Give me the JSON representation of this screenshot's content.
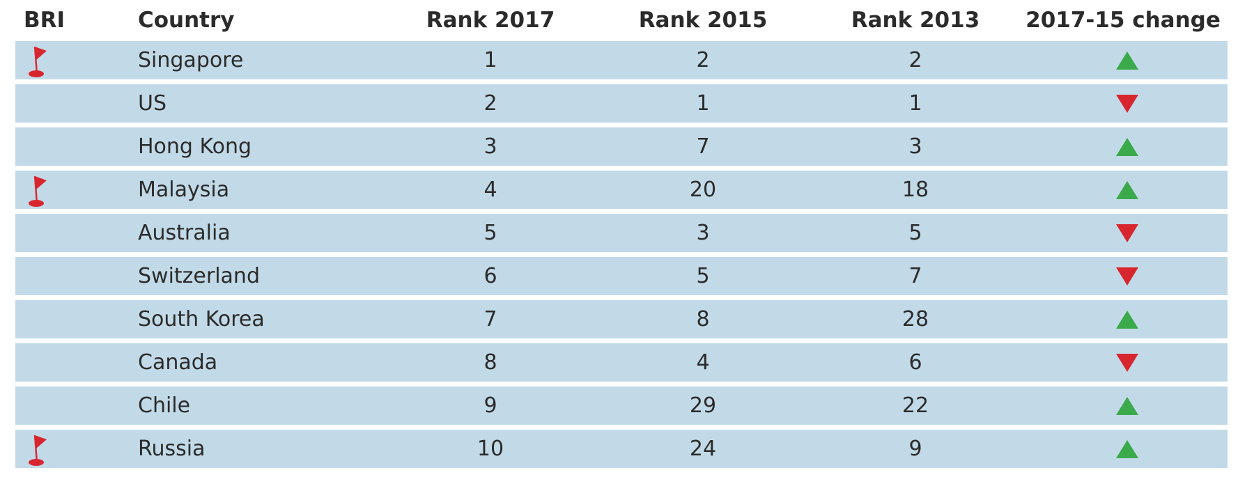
{
  "chart_data": {
    "type": "table",
    "columns": [
      "BRI",
      "Country",
      "Rank 2017",
      "Rank 2015",
      "Rank 2013",
      "2017-15 change"
    ],
    "rows": [
      {
        "bri": true,
        "country": "Singapore",
        "rank_2017": "1",
        "rank_2015": "2",
        "rank_2013": "2",
        "change": "up"
      },
      {
        "bri": false,
        "country": "US",
        "rank_2017": "2",
        "rank_2015": "1",
        "rank_2013": "1",
        "change": "down"
      },
      {
        "bri": false,
        "country": "Hong Kong",
        "rank_2017": "3",
        "rank_2015": "7",
        "rank_2013": "3",
        "change": "up"
      },
      {
        "bri": true,
        "country": "Malaysia",
        "rank_2017": "4",
        "rank_2015": "20",
        "rank_2013": "18",
        "change": "up"
      },
      {
        "bri": false,
        "country": "Australia",
        "rank_2017": "5",
        "rank_2015": "3",
        "rank_2013": "5",
        "change": "down"
      },
      {
        "bri": false,
        "country": "Switzerland",
        "rank_2017": "6",
        "rank_2015": "5",
        "rank_2013": "7",
        "change": "down"
      },
      {
        "bri": false,
        "country": "South Korea",
        "rank_2017": "7",
        "rank_2015": "8",
        "rank_2013": "28",
        "change": "up"
      },
      {
        "bri": false,
        "country": "Canada",
        "rank_2017": "8",
        "rank_2015": "4",
        "rank_2013": "6",
        "change": "down"
      },
      {
        "bri": false,
        "country": "Chile",
        "rank_2017": "9",
        "rank_2015": "29",
        "rank_2013": "22",
        "change": "up"
      },
      {
        "bri": true,
        "country": "Russia",
        "rank_2017": "10",
        "rank_2015": "24",
        "rank_2013": "9",
        "change": "up"
      }
    ]
  },
  "icons": {
    "bri_marker": "red-flag-icon",
    "up": "green-triangle-up-icon",
    "down": "red-triangle-down-icon"
  },
  "colors": {
    "row_background": "#c2dae8",
    "flag": "#d8262f",
    "up": "#3aaa4a",
    "down": "#d8262f",
    "text": "#2b2b2b"
  }
}
